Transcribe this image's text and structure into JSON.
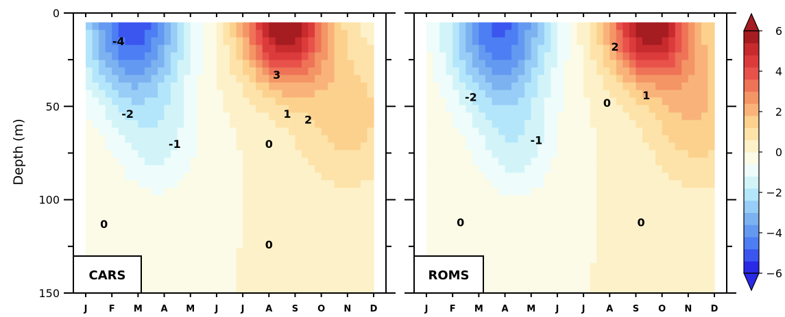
{
  "chart_data": [
    {
      "type": "heatmap",
      "panel_label": "CARS",
      "ylabel": "Depth (m)",
      "ylim": [
        0,
        150
      ],
      "y_inverted": true,
      "y_ticks": [
        0,
        50,
        100,
        150
      ],
      "x_ticks": [
        "J",
        "F",
        "M",
        "A",
        "M",
        "J",
        "J",
        "A",
        "S",
        "O",
        "N",
        "D"
      ],
      "contour_labels": [
        {
          "text": "-4",
          "month_index": 1.25,
          "depth": 15
        },
        {
          "text": "-2",
          "month_index": 1.6,
          "depth": 54
        },
        {
          "text": "-1",
          "month_index": 3.4,
          "depth": 70
        },
        {
          "text": "0",
          "month_index": 0.7,
          "depth": 113
        },
        {
          "text": "0",
          "month_index": 7.0,
          "depth": 70
        },
        {
          "text": "0",
          "month_index": 7.0,
          "depth": 124
        },
        {
          "text": "1",
          "month_index": 7.7,
          "depth": 54
        },
        {
          "text": "2",
          "month_index": 8.5,
          "depth": 57
        },
        {
          "text": "3",
          "month_index": 7.3,
          "depth": 33
        }
      ],
      "fields": [
        {
          "center_month": 1.8,
          "center_depth": 5,
          "amp": -5.3,
          "sx": 1.9,
          "sy": 42
        },
        {
          "center_month": 2.8,
          "center_depth": 70,
          "amp": -1.2,
          "sx": 1.6,
          "sy": 30
        },
        {
          "center_month": 7.6,
          "center_depth": 5,
          "amp": 6.2,
          "sx": 1.6,
          "sy": 32
        },
        {
          "center_month": 10.0,
          "center_depth": 55,
          "amp": 1.5,
          "sx": 2.0,
          "sy": 40
        }
      ]
    },
    {
      "type": "heatmap",
      "panel_label": "ROMS",
      "ylabel": "",
      "ylim": [
        0,
        150
      ],
      "y_inverted": true,
      "y_ticks": [
        0,
        50,
        100,
        150
      ],
      "x_ticks": [
        "J",
        "F",
        "M",
        "A",
        "M",
        "J",
        "J",
        "A",
        "S",
        "O",
        "N",
        "D"
      ],
      "contour_labels": [
        {
          "text": "2",
          "month_index": 7.2,
          "depth": 18
        },
        {
          "text": "-2",
          "month_index": 1.7,
          "depth": 45
        },
        {
          "text": "0",
          "month_index": 6.9,
          "depth": 48
        },
        {
          "text": "1",
          "month_index": 8.4,
          "depth": 44
        },
        {
          "text": "-1",
          "month_index": 4.2,
          "depth": 68
        },
        {
          "text": "0",
          "month_index": 1.3,
          "depth": 112
        },
        {
          "text": "0",
          "month_index": 8.2,
          "depth": 112
        }
      ],
      "fields": [
        {
          "center_month": 2.8,
          "center_depth": 5,
          "amp": -5.0,
          "sx": 1.9,
          "sy": 45
        },
        {
          "center_month": 3.5,
          "center_depth": 72,
          "amp": -1.2,
          "sx": 1.5,
          "sy": 30
        },
        {
          "center_month": 8.5,
          "center_depth": 5,
          "amp": 6.0,
          "sx": 1.6,
          "sy": 30
        },
        {
          "center_month": 10.3,
          "center_depth": 50,
          "amp": 1.8,
          "sx": 1.9,
          "sy": 42
        }
      ]
    }
  ],
  "colorbar": {
    "ticks": [
      "6",
      "4",
      "2",
      "0",
      "−2",
      "−4",
      "−6"
    ],
    "tick_values": [
      6,
      4,
      2,
      0,
      -2,
      -4,
      -6
    ],
    "range": [
      -6,
      6
    ],
    "colors": [
      "#2a2ae6",
      "#3b56ef",
      "#4d7ef3",
      "#6499f1",
      "#7cb2f0",
      "#97cdf6",
      "#b4e6fb",
      "#d2f4f8",
      "#eefcfb",
      "#fbfbe7",
      "#fdf1c9",
      "#fde3a9",
      "#fcd18e",
      "#f9b37a",
      "#f49566",
      "#ee7357",
      "#e8524a",
      "#dc3b3b",
      "#c72b2e",
      "#a51c21"
    ]
  }
}
